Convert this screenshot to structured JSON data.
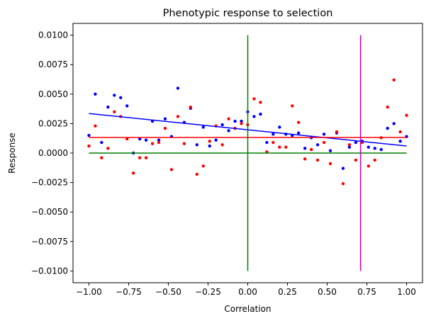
{
  "chart_data": {
    "type": "scatter",
    "title": "Phenotypic response to selection",
    "xlabel": "Correlation",
    "ylabel": "Response",
    "xlim": [
      -1.1,
      1.1
    ],
    "ylim": [
      -0.011,
      0.011
    ],
    "grid": false,
    "xticks": [
      "−1.00",
      "−0.75",
      "−0.50",
      "−0.25",
      "0.00",
      "0.25",
      "0.50",
      "0.75",
      "1.00"
    ],
    "xtick_values": [
      -1.0,
      -0.75,
      -0.5,
      -0.25,
      0.0,
      0.25,
      0.5,
      0.75,
      1.0
    ],
    "yticks": [
      "−0.0100",
      "−0.0075",
      "−0.0050",
      "−0.0025",
      "0.0000",
      "0.0025",
      "0.0050",
      "0.0075",
      "0.0100"
    ],
    "ytick_values": [
      -0.01,
      -0.0075,
      -0.005,
      -0.0025,
      0.0,
      0.0025,
      0.005,
      0.0075,
      0.01
    ],
    "colors": {
      "blue": "#0000ff",
      "red": "#ff0000",
      "green": "#008000",
      "magenta": "#bf00bf"
    },
    "series": [
      {
        "color": "#0000ff",
        "points": [
          [
            -1.0,
            0.0015
          ],
          [
            -0.96,
            0.005
          ],
          [
            -0.92,
            0.0009
          ],
          [
            -0.88,
            0.0039
          ],
          [
            -0.84,
            0.0049
          ],
          [
            -0.8,
            0.0047
          ],
          [
            -0.76,
            0.004
          ],
          [
            -0.72,
            0.0
          ],
          [
            -0.68,
            0.0012
          ],
          [
            -0.64,
            0.0011
          ],
          [
            -0.6,
            0.0027
          ],
          [
            -0.56,
            0.0011
          ],
          [
            -0.52,
            0.0029
          ],
          [
            -0.48,
            0.0014
          ],
          [
            -0.44,
            0.0055
          ],
          [
            -0.4,
            0.0026
          ],
          [
            -0.36,
            0.0038
          ],
          [
            -0.32,
            0.0007
          ],
          [
            -0.28,
            0.0022
          ],
          [
            -0.24,
            0.0006
          ],
          [
            -0.2,
            0.0011
          ],
          [
            -0.16,
            0.0024
          ],
          [
            -0.12,
            0.0019
          ],
          [
            -0.08,
            0.0027
          ],
          [
            -0.04,
            0.0027
          ],
          [
            0.0,
            0.0035
          ],
          [
            0.04,
            0.0031
          ],
          [
            0.08,
            0.0033
          ],
          [
            0.12,
            0.0009
          ],
          [
            0.16,
            0.0016
          ],
          [
            0.2,
            0.0022
          ],
          [
            0.24,
            0.0016
          ],
          [
            0.28,
            0.0015
          ],
          [
            0.32,
            0.0017
          ],
          [
            0.36,
            0.0004
          ],
          [
            0.4,
            0.0013
          ],
          [
            0.44,
            0.0007
          ],
          [
            0.48,
            0.0016
          ],
          [
            0.52,
            0.0002
          ],
          [
            0.56,
            0.0017
          ],
          [
            0.6,
            -0.0013
          ],
          [
            0.64,
            0.0005
          ],
          [
            0.68,
            0.0009
          ],
          [
            0.72,
            0.001
          ],
          [
            0.76,
            0.0005
          ],
          [
            0.8,
            0.0004
          ],
          [
            0.84,
            0.0003
          ],
          [
            0.88,
            0.0021
          ],
          [
            0.92,
            0.0025
          ],
          [
            0.96,
            0.001
          ],
          [
            1.0,
            0.0014
          ]
        ]
      },
      {
        "color": "#ff0000",
        "points": [
          [
            -1.0,
            0.0006
          ],
          [
            -0.96,
            0.0023
          ],
          [
            -0.92,
            -0.0004
          ],
          [
            -0.88,
            0.0004
          ],
          [
            -0.84,
            0.0035
          ],
          [
            -0.8,
            0.0031
          ],
          [
            -0.76,
            0.0012
          ],
          [
            -0.72,
            -0.0017
          ],
          [
            -0.68,
            -0.0004
          ],
          [
            -0.64,
            -0.0004
          ],
          [
            -0.6,
            0.0008
          ],
          [
            -0.56,
            0.0009
          ],
          [
            -0.52,
            0.0021
          ],
          [
            -0.48,
            -0.0014
          ],
          [
            -0.44,
            0.0031
          ],
          [
            -0.4,
            0.0008
          ],
          [
            -0.36,
            0.0039
          ],
          [
            -0.32,
            -0.0018
          ],
          [
            -0.28,
            -0.0011
          ],
          [
            -0.24,
            0.001
          ],
          [
            -0.2,
            0.0023
          ],
          [
            -0.16,
            0.0007
          ],
          [
            -0.12,
            0.0029
          ],
          [
            -0.08,
            0.0021
          ],
          [
            -0.04,
            0.0025
          ],
          [
            0.0,
            0.0024
          ],
          [
            0.04,
            0.0046
          ],
          [
            0.08,
            0.0043
          ],
          [
            0.12,
            0.0001
          ],
          [
            0.16,
            0.0009
          ],
          [
            0.2,
            0.0005
          ],
          [
            0.24,
            0.0005
          ],
          [
            0.28,
            0.004
          ],
          [
            0.32,
            0.0026
          ],
          [
            0.36,
            -0.0005
          ],
          [
            0.4,
            0.0003
          ],
          [
            0.44,
            -0.0006
          ],
          [
            0.48,
            0.0009
          ],
          [
            0.52,
            -0.0009
          ],
          [
            0.56,
            0.0018
          ],
          [
            0.6,
            -0.0026
          ],
          [
            0.64,
            0.0007
          ],
          [
            0.68,
            -0.0006
          ],
          [
            0.72,
            0.0009
          ],
          [
            0.76,
            -0.0011
          ],
          [
            0.8,
            -0.0006
          ],
          [
            0.84,
            0.0013
          ],
          [
            0.88,
            0.0039
          ],
          [
            0.92,
            0.0062
          ],
          [
            0.96,
            0.0018
          ],
          [
            1.0,
            0.0032
          ]
        ]
      }
    ],
    "lines": [
      {
        "color": "#0000ff",
        "x": [
          -1.0,
          1.0
        ],
        "y": [
          0.00335,
          0.0006
        ]
      },
      {
        "color": "#ff0000",
        "x": [
          -1.0,
          1.0
        ],
        "y": [
          0.00132,
          0.00132
        ]
      },
      {
        "color": "#008000",
        "x": [
          -1.0,
          1.0
        ],
        "y": [
          0.0,
          0.0
        ]
      },
      {
        "color": "#008000",
        "x": [
          0.0,
          0.0
        ],
        "y": [
          -0.01,
          0.01
        ]
      },
      {
        "color": "#bf00bf",
        "x": [
          0.71,
          0.71
        ],
        "y": [
          -0.01,
          0.01
        ]
      }
    ]
  }
}
